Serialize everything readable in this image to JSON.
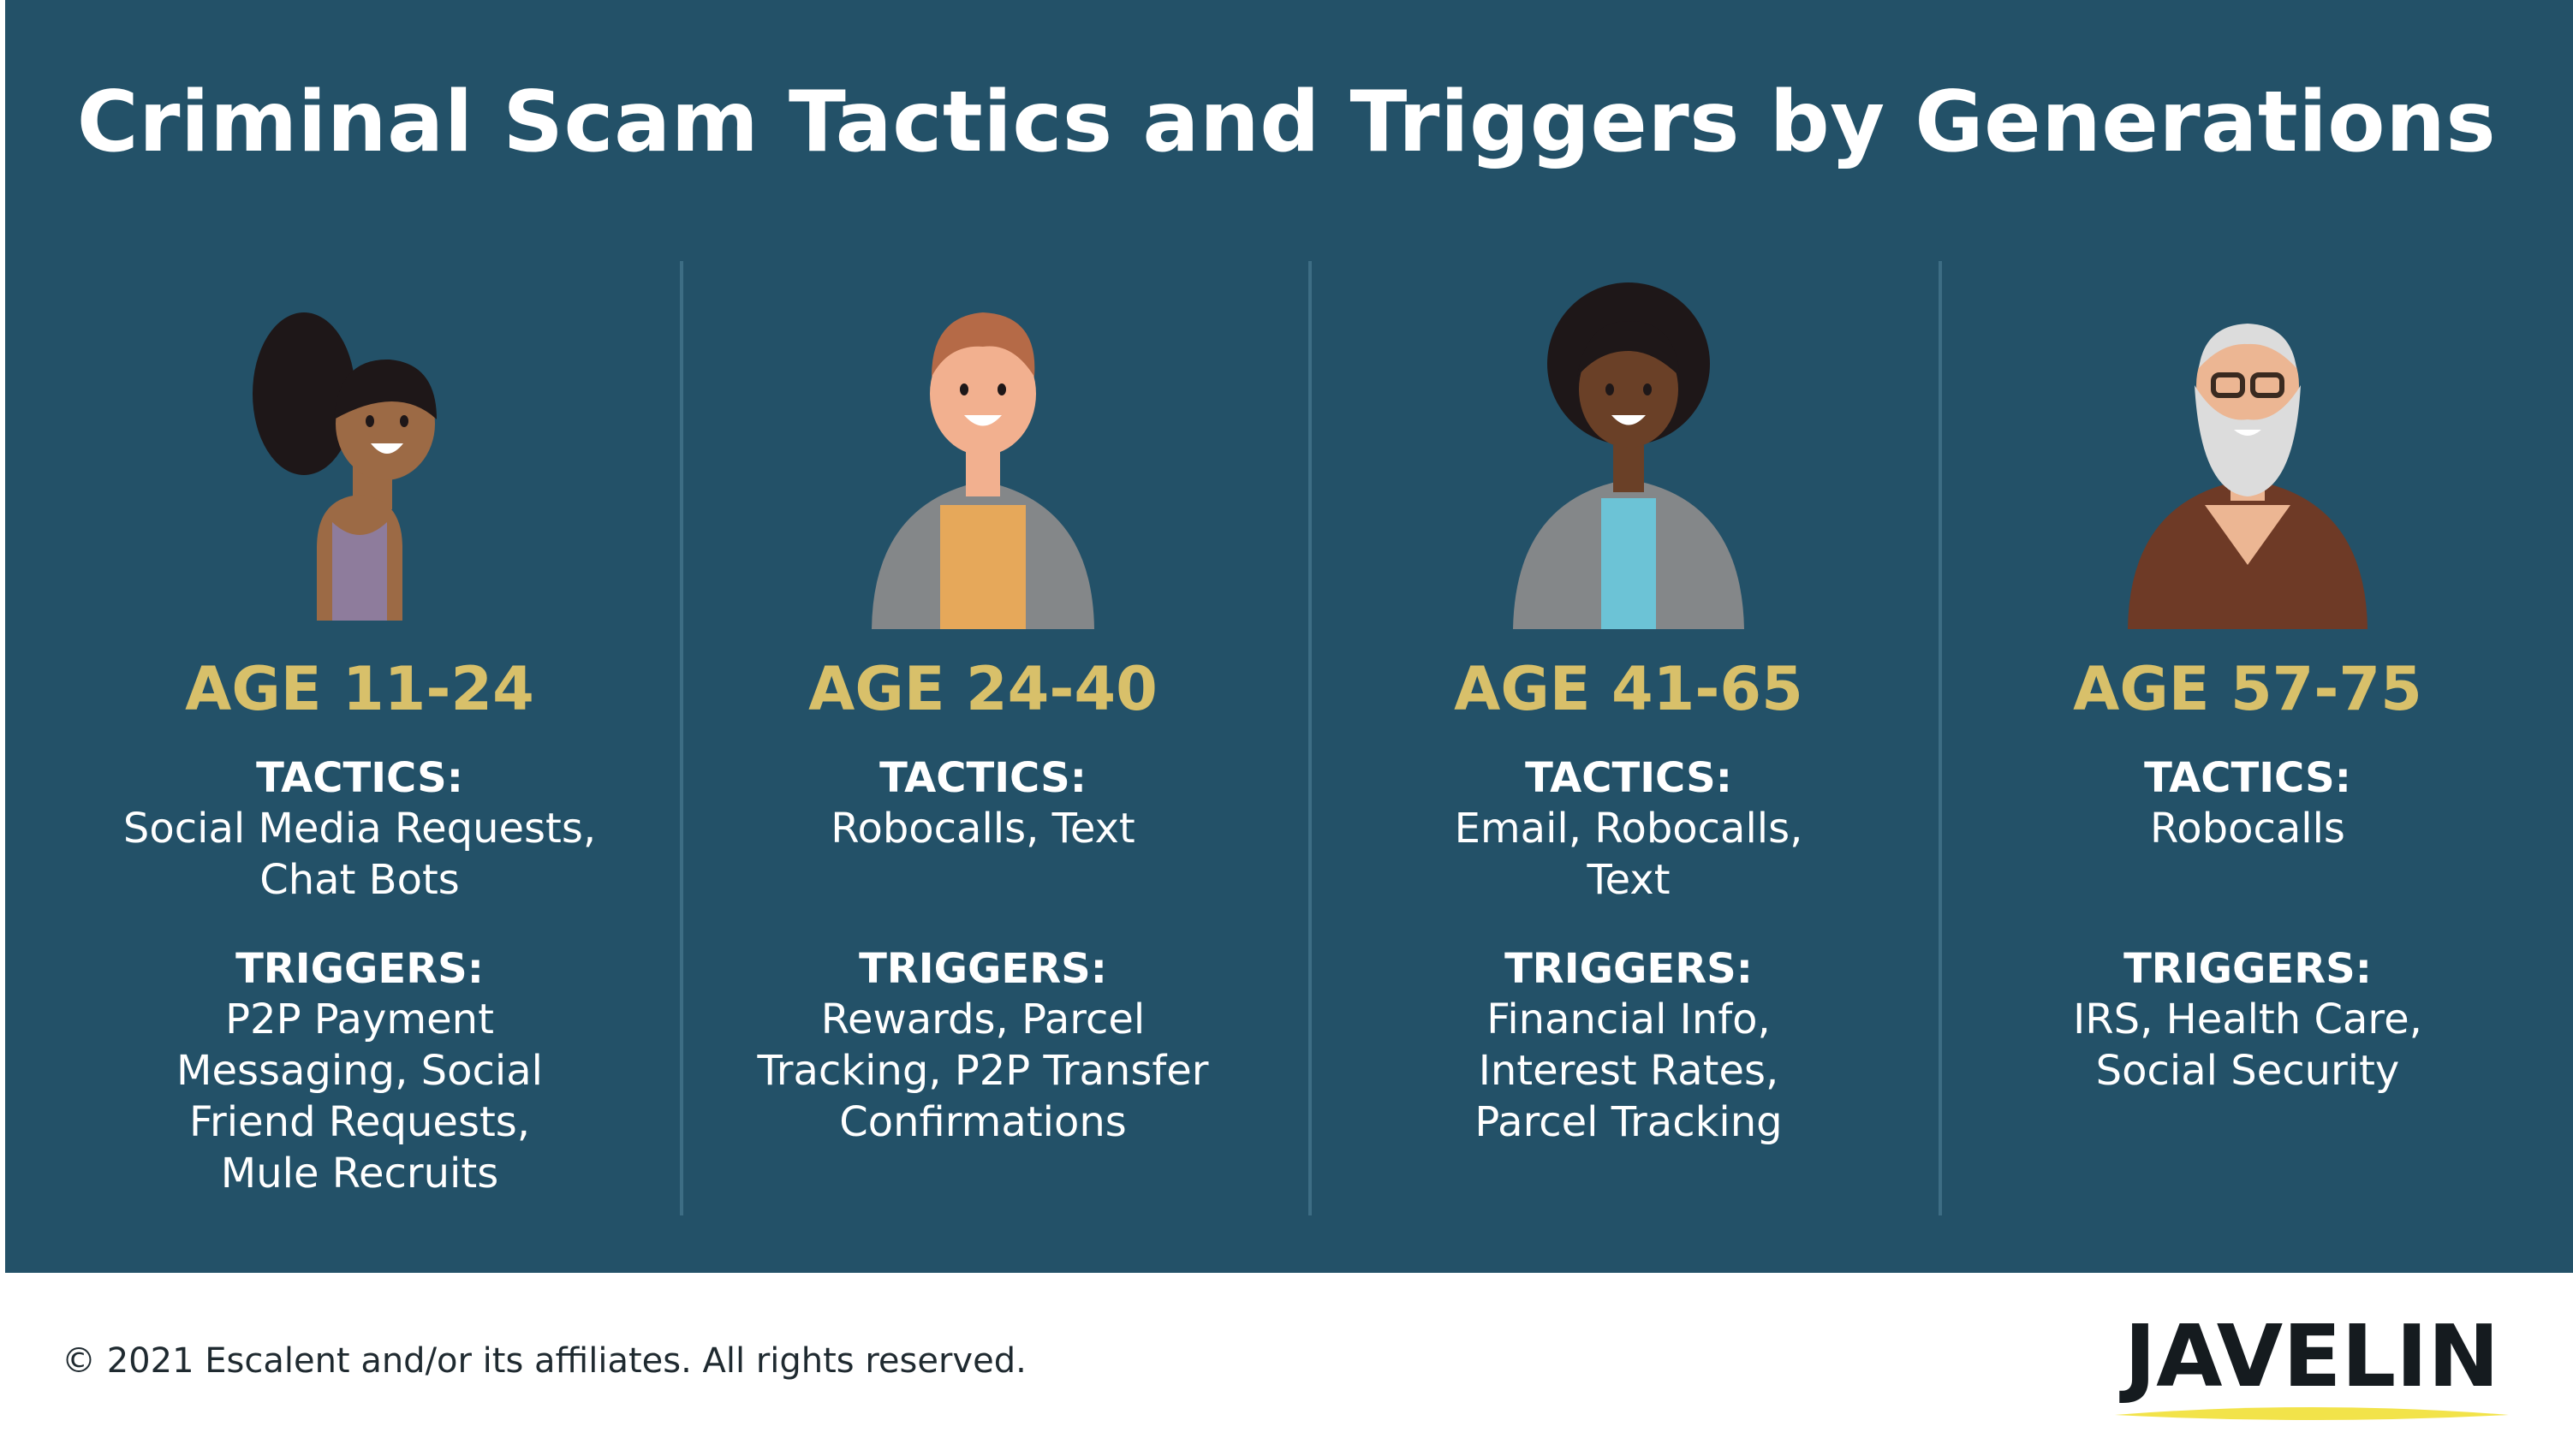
{
  "title": "Criminal Scam Tactics and Triggers by Generations",
  "colors": {
    "panel": "#235168",
    "age": "#d8c06a",
    "text": "#ffffff",
    "logo_accent": "#f2e34a"
  },
  "columns": [
    {
      "age": "AGE 11-24",
      "tactics_heading": "TACTICS:",
      "tactics": [
        "Social Media Requests,",
        "Chat Bots"
      ],
      "triggers_heading": "TRIGGERS:",
      "triggers": [
        "P2P Payment",
        "Messaging, Social",
        "Friend Requests,",
        "Mule Recruits"
      ],
      "avatar": "young-girl-avatar"
    },
    {
      "age": "AGE 24-40",
      "tactics_heading": "TACTICS:",
      "tactics": [
        "Robocalls, Text"
      ],
      "triggers_heading": "TRIGGERS:",
      "triggers": [
        "Rewards, Parcel",
        "Tracking, P2P Transfer",
        "Confirmations"
      ],
      "avatar": "young-man-avatar"
    },
    {
      "age": "AGE 41-65",
      "tactics_heading": "TACTICS:",
      "tactics": [
        "Email, Robocalls,",
        "Text"
      ],
      "triggers_heading": "TRIGGERS:",
      "triggers": [
        "Financial Info,",
        "Interest Rates,",
        "Parcel Tracking"
      ],
      "avatar": "woman-avatar"
    },
    {
      "age": "AGE 57-75",
      "tactics_heading": "TACTICS:",
      "tactics": [
        "Robocalls"
      ],
      "triggers_heading": "TRIGGERS:",
      "triggers": [
        "IRS, Health Care,",
        "Social Security"
      ],
      "avatar": "older-man-avatar"
    }
  ],
  "footer": {
    "copyright": "© 2021 Escalent and/or its affiliates. All rights reserved.",
    "logo": "JAVELIN"
  }
}
